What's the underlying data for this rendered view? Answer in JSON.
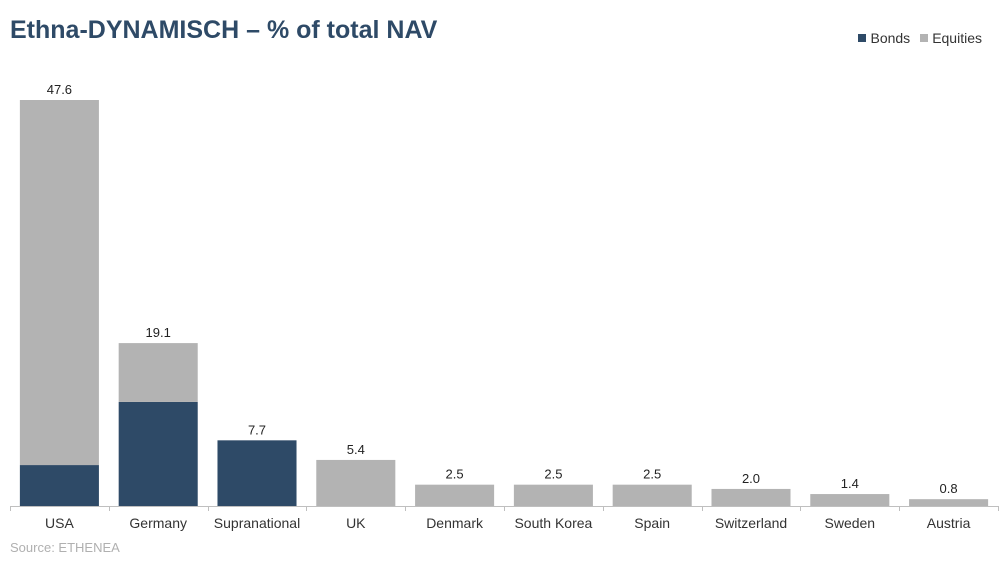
{
  "title": "Ethna-DYNAMISCH – % of total NAV",
  "source": "Source: ETHENEA",
  "colors": {
    "bonds": "#2e4a67",
    "equities": "#b3b3b3",
    "axis": "#bfbfbf",
    "title": "#2e4a67"
  },
  "legend": [
    {
      "name": "Bonds",
      "color": "#2e4a67"
    },
    {
      "name": "Equities",
      "color": "#b3b3b3"
    }
  ],
  "chart_data": {
    "type": "bar",
    "stacked": true,
    "title": "Ethna-DYNAMISCH – % of total NAV",
    "categories": [
      "USA",
      "Germany",
      "Supranational",
      "UK",
      "Denmark",
      "South Korea",
      "Spain",
      "Switzerland",
      "Sweden",
      "Austria"
    ],
    "series": [
      {
        "name": "Bonds",
        "values": [
          4.8,
          12.2,
          7.7,
          0,
          0,
          0,
          0,
          0,
          0,
          0
        ]
      },
      {
        "name": "Equities",
        "values": [
          42.8,
          6.9,
          0,
          5.4,
          2.5,
          2.5,
          2.5,
          2.0,
          1.4,
          0.8
        ]
      }
    ],
    "totals": [
      "47.6",
      "19.1",
      "7.7",
      "5.4",
      "2.5",
      "2.5",
      "2.5",
      "2.0",
      "1.4",
      "0.8"
    ],
    "ylim": [
      0,
      47.6
    ],
    "grid": false,
    "legend_position": "top-right"
  }
}
